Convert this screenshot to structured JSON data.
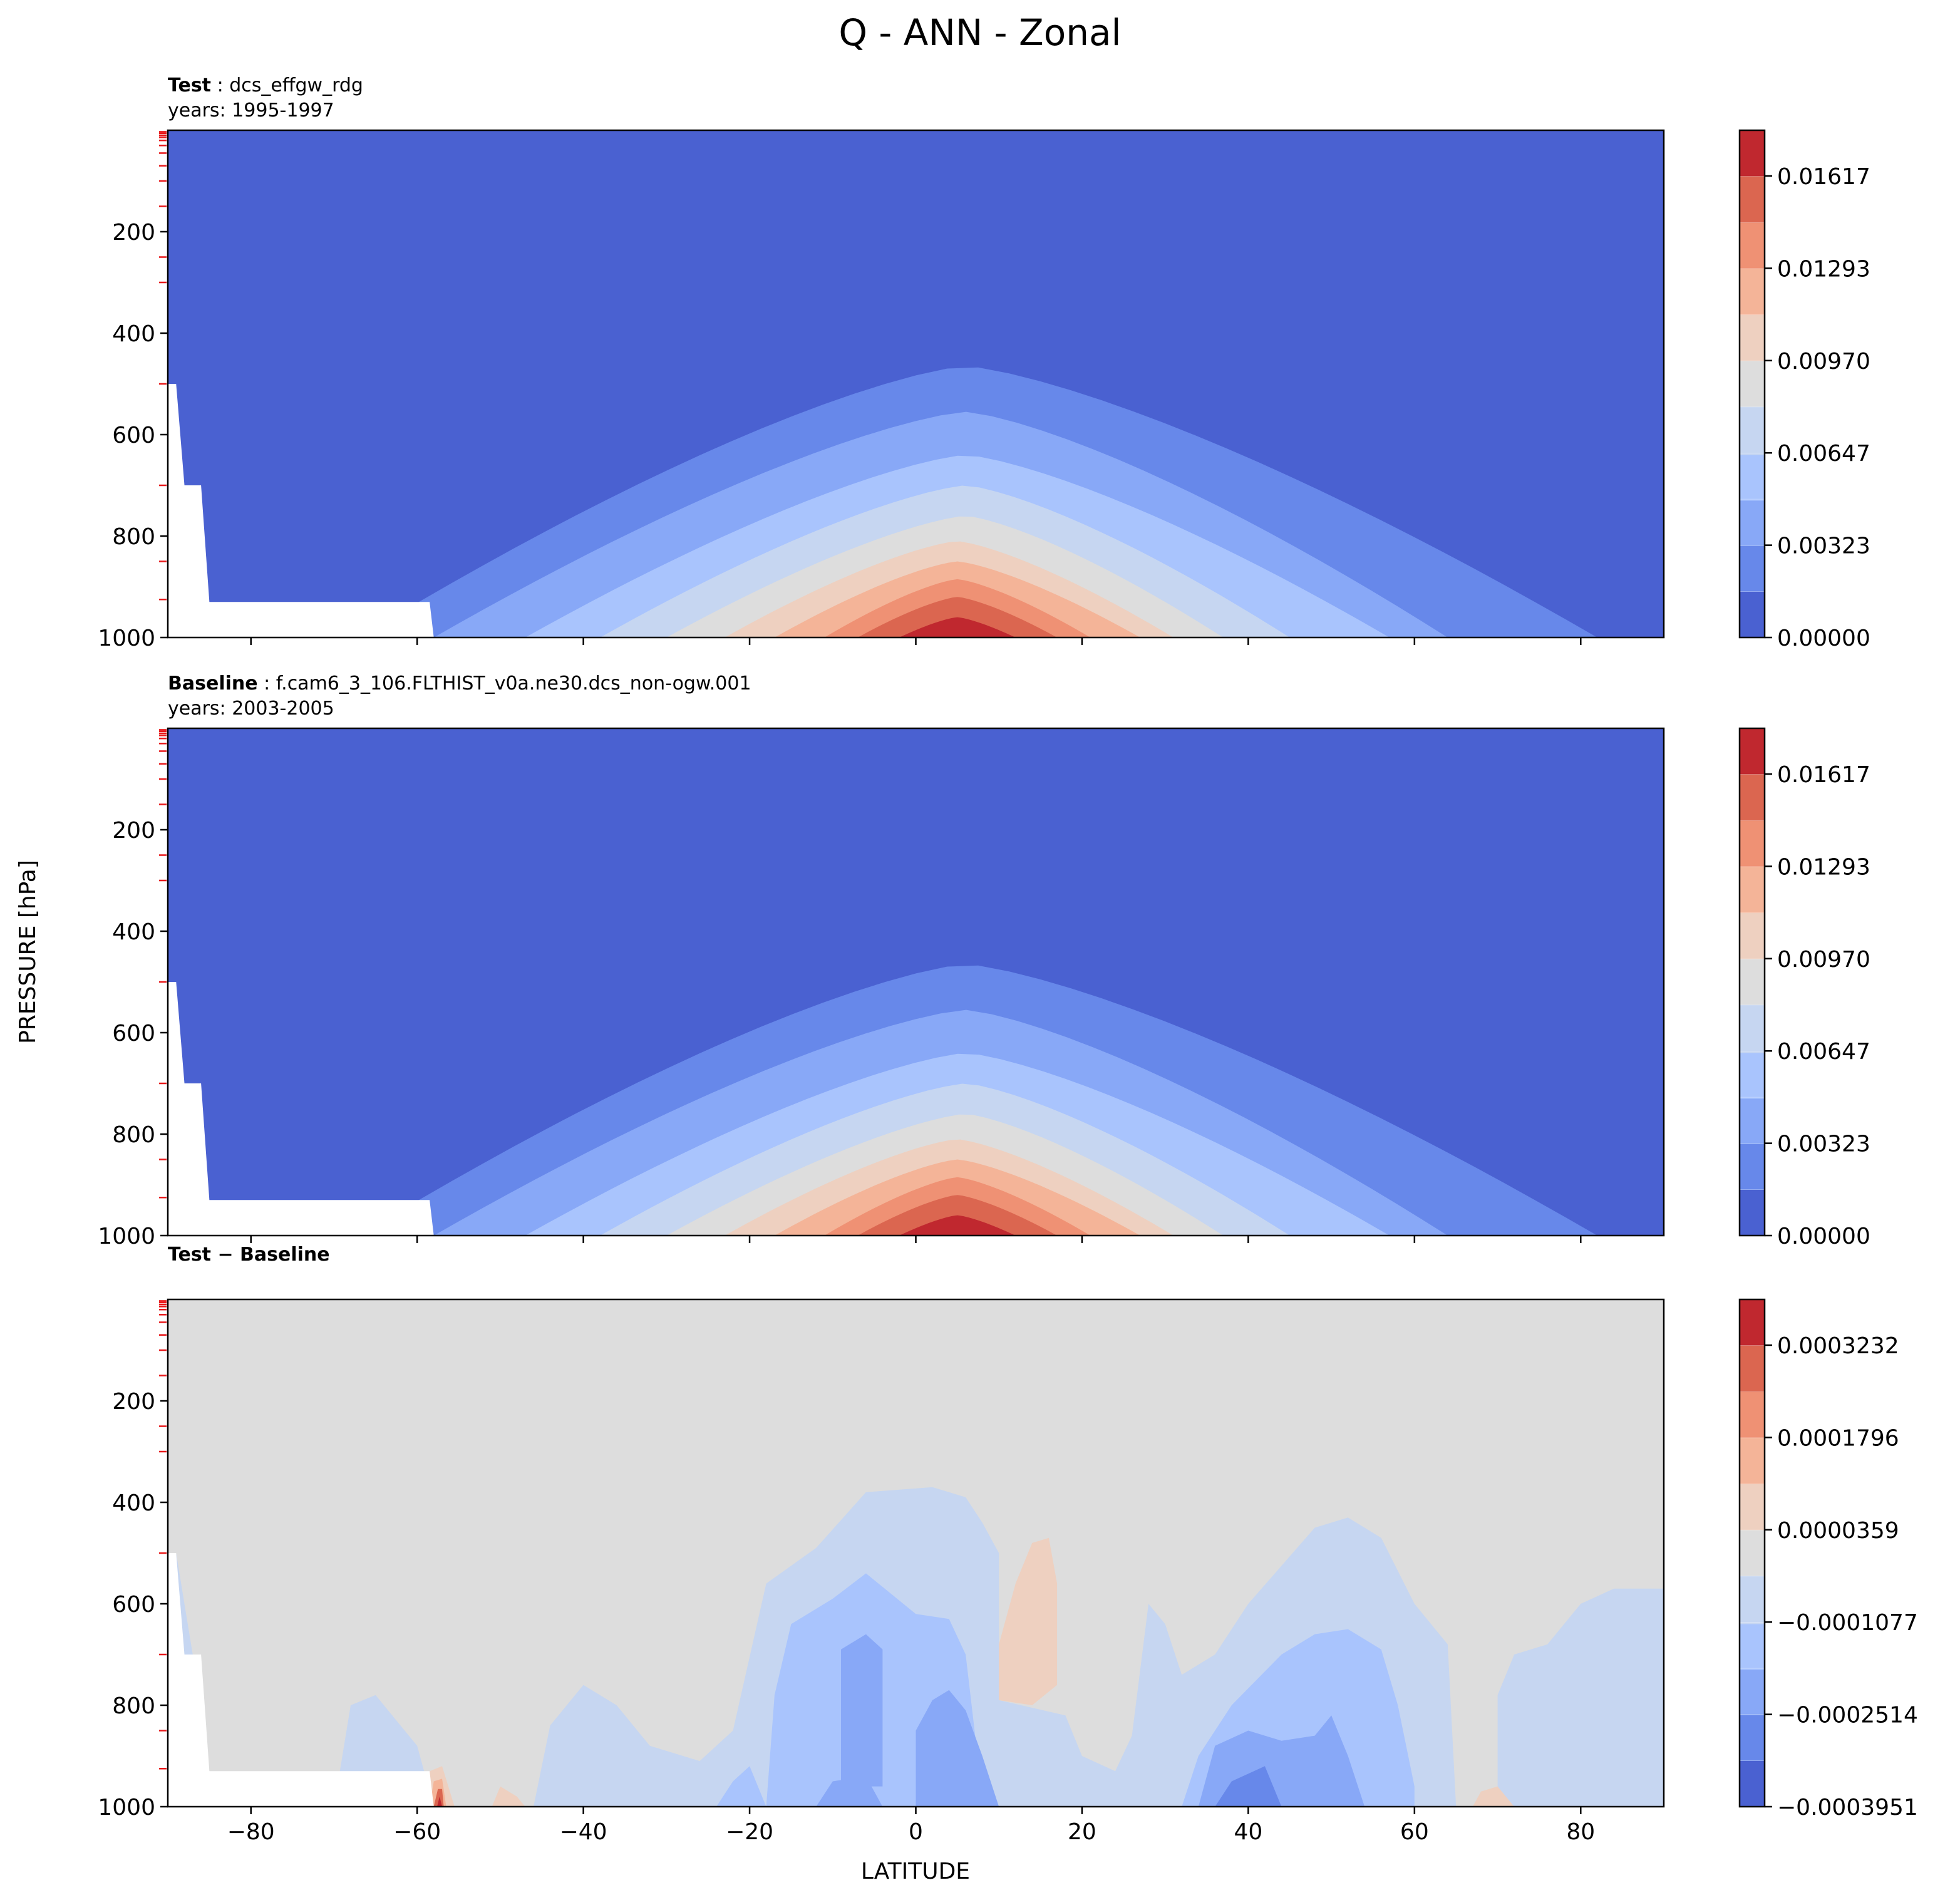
{
  "title": "Q - ANN - Zonal",
  "ylabel": "PRESSURE [hPa]",
  "xlabel": "LATITUDE",
  "chart_data": {
    "type": "contourf",
    "x_axis": {
      "label": "LATITUDE",
      "range": [
        -90,
        90
      ],
      "ticks": [
        -80,
        -60,
        -40,
        -20,
        0,
        20,
        40,
        60,
        80
      ],
      "tick_labels": [
        "−80",
        "−60",
        "−40",
        "−20",
        "0",
        "20",
        "40",
        "60",
        "80"
      ]
    },
    "y_axis": {
      "label": "PRESSURE [hPa]",
      "range": [
        1000,
        0
      ],
      "inverted": true,
      "ticks": [
        200,
        400,
        600,
        800,
        1000
      ],
      "tick_labels": [
        "200",
        "400",
        "600",
        "800",
        "1000"
      ]
    },
    "panels": [
      {
        "id": "test",
        "label_bold": "Test",
        "label_text": ": dcs_effgw_rdg",
        "years": "years: 1995-1997",
        "colorbar_ticks": [
          "0.01617",
          "0.01293",
          "0.00970",
          "0.00647",
          "0.00323",
          "0.00000"
        ],
        "colorbar_range": [
          0.0,
          0.0178
        ],
        "levels": 11,
        "peak": {
          "lat": 5,
          "pressure": 960,
          "value": 0.0176
        },
        "background_value": 0.0,
        "missing_region": "topography below surface near -90 to -58 latitude"
      },
      {
        "id": "baseline",
        "label_bold": "Baseline",
        "label_text": ": f.cam6_3_106.FLTHIST_v0a.ne30.dcs_non-ogw.001",
        "years": "years: 2003-2005",
        "colorbar_ticks": [
          "0.01617",
          "0.01293",
          "0.00970",
          "0.00647",
          "0.00323",
          "0.00000"
        ],
        "colorbar_range": [
          0.0,
          0.0178
        ],
        "levels": 11,
        "peak": {
          "lat": 5,
          "pressure": 960,
          "value": 0.0176
        },
        "background_value": 0.0,
        "missing_region": "topography below surface near -90 to -58 latitude"
      },
      {
        "id": "diff",
        "label_bold": "Test − Baseline",
        "label_text": "",
        "years": "",
        "colorbar_ticks": [
          "0.0003232",
          "0.0001796",
          "0.0000359",
          "−0.0001077",
          "−0.0002514",
          "−0.0003951"
        ],
        "colorbar_range": [
          -0.0003951,
          0.000395
        ],
        "levels": 11,
        "background_value": 0.0,
        "features": [
          {
            "type": "positive",
            "lat": 14,
            "pressure_range": [
              470,
              790
            ],
            "value": 5e-05
          },
          {
            "type": "positive",
            "lat": -57,
            "pressure_range": [
              920,
              1000
            ],
            "value": 0.00035
          },
          {
            "type": "negative",
            "lat": -5,
            "pressure_range": [
              620,
              1000
            ],
            "value": -0.00018
          },
          {
            "type": "negative",
            "lat": 40,
            "pressure_range": [
              650,
              1000
            ],
            "value": -0.00025
          },
          {
            "type": "negative",
            "lat": 80,
            "pressure_range": [
              560,
              1000
            ],
            "value": -8e-05
          }
        ]
      }
    ]
  }
}
